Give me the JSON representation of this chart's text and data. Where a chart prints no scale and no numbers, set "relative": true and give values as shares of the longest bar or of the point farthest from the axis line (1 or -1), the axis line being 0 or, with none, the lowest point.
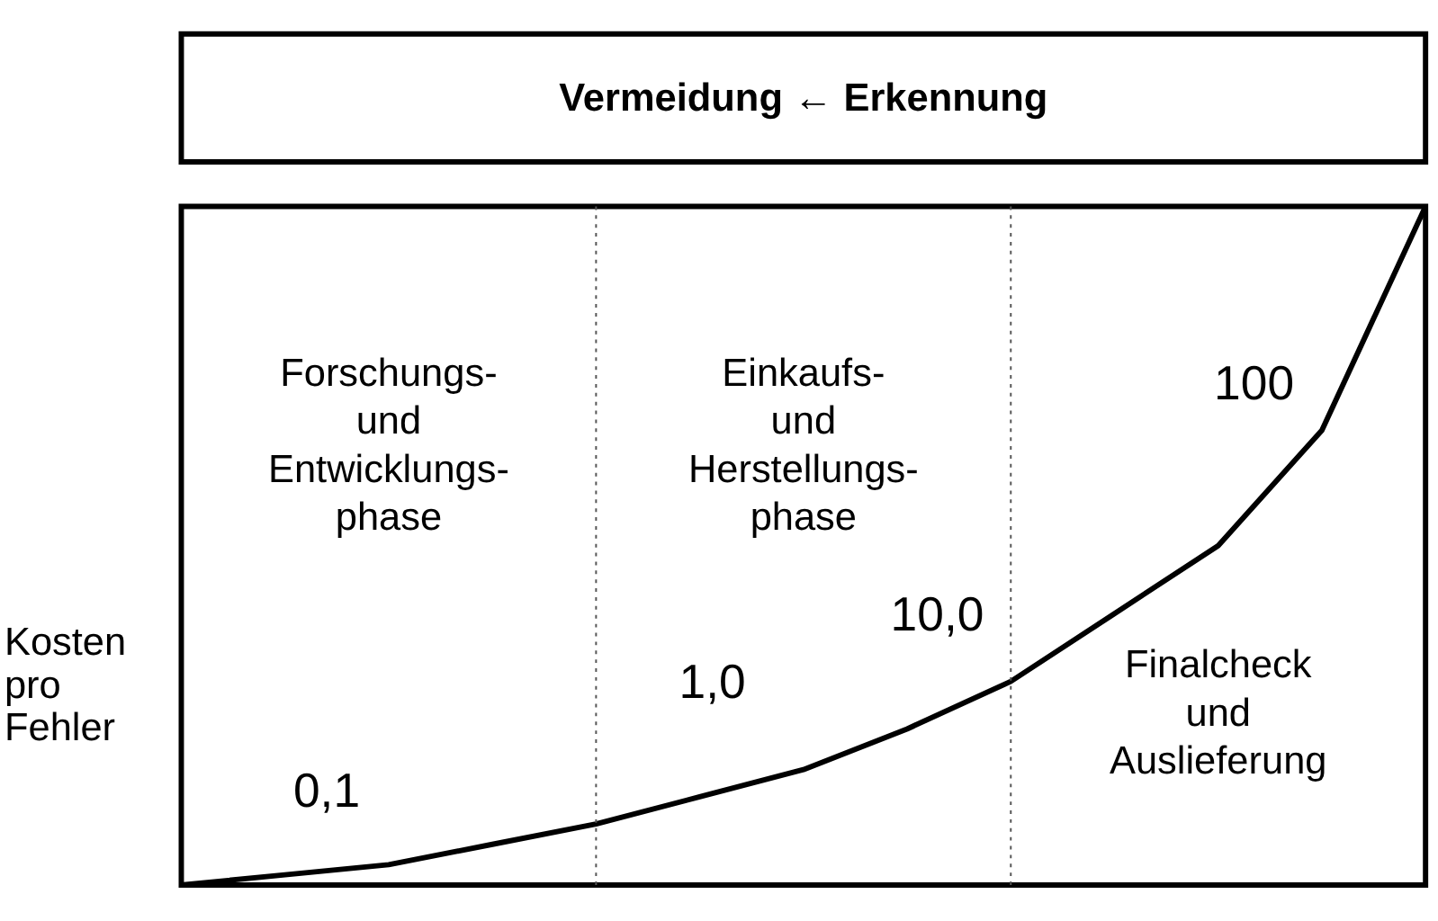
{
  "chart_data": {
    "type": "line",
    "title": "Vermeidung ← Erkennung",
    "ylabel": "Kosten pro Fehler",
    "relative": true,
    "marker": "none",
    "line_style": "solid",
    "categories": [
      null,
      null,
      null,
      null,
      null,
      null,
      null,
      null,
      null,
      null,
      null,
      null,
      null
    ],
    "series": [
      {
        "color": "#000000",
        "values": [
          0,
          0.015,
          0.03,
          0.06,
          0.09,
          0.13,
          0.17,
          0.23,
          0.3,
          0.4,
          0.5,
          0.67,
          1.0
        ]
      }
    ],
    "annotations": [
      "Forschungs-\nund\nEntwicklungs-\nphase",
      "Einkaufs-\nund\nHerstellungs-\nphase",
      "Finalcheck\nund\nAuslieferung",
      "0,1",
      "1,0",
      "10,0",
      "100"
    ]
  }
}
